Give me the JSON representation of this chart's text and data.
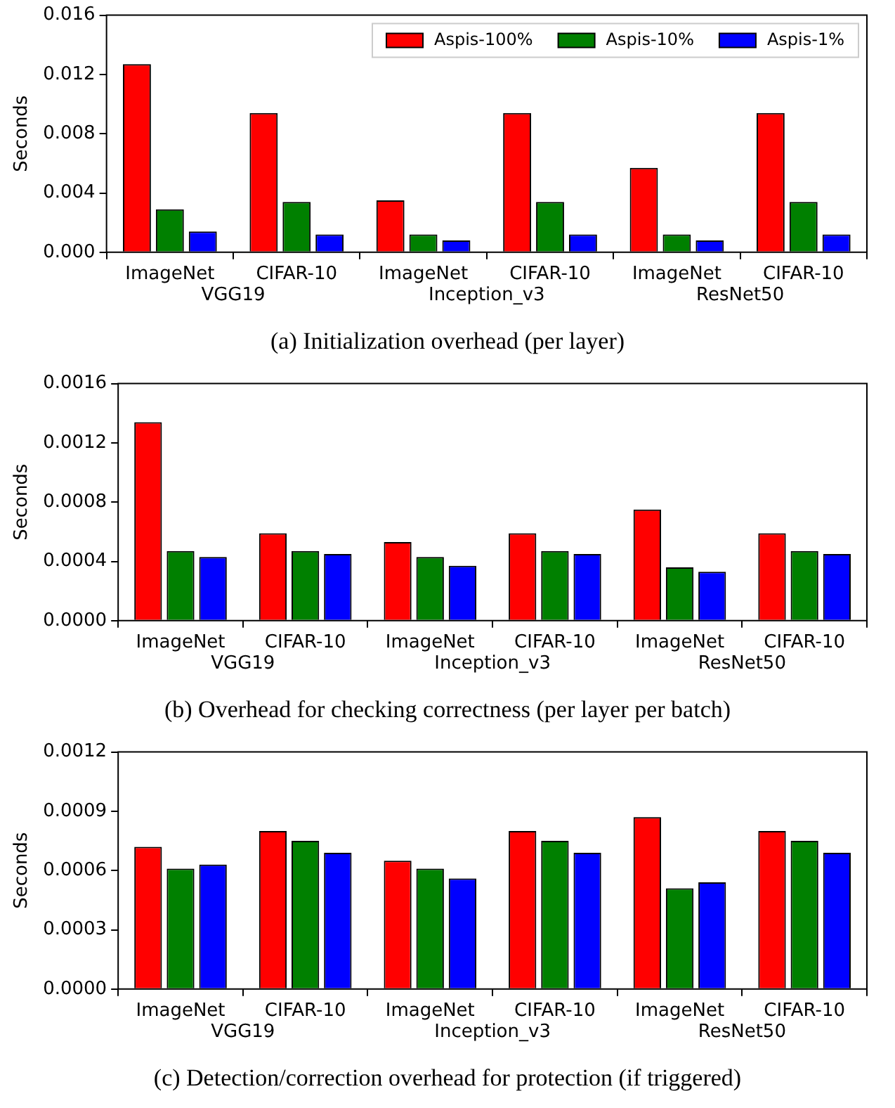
{
  "chart_data": [
    {
      "type": "bar",
      "title": "(a) Initialization overhead (per layer)",
      "ylabel": "Seconds",
      "categories": [
        "ImageNet",
        "CIFAR-10",
        "ImageNet",
        "CIFAR-10",
        "ImageNet",
        "CIFAR-10"
      ],
      "annotations": [
        "VGG19",
        "Inception_v3",
        "ResNet50"
      ],
      "ylim": [
        0,
        0.016
      ],
      "yticks": [
        {
          "value": 0,
          "label": "0.000"
        },
        {
          "value": 0.004,
          "label": "0.004"
        },
        {
          "value": 0.008,
          "label": "0.008"
        },
        {
          "value": 0.012,
          "label": "0.012"
        },
        {
          "value": 0.016,
          "label": "0.016"
        }
      ],
      "legend": "top right",
      "grid": false,
      "series": [
        {
          "name": "Aspis-100%",
          "color": "#ff0000",
          "values": [
            0.0127,
            0.0094,
            0.0035,
            0.0094,
            0.0057,
            0.0094
          ]
        },
        {
          "name": "Aspis-10%",
          "color": "#008000",
          "values": [
            0.0029,
            0.0034,
            0.0012,
            0.0034,
            0.0012,
            0.0034
          ]
        },
        {
          "name": "Aspis-1%",
          "color": "#0000ff",
          "values": [
            0.0014,
            0.0012,
            0.0008,
            0.0012,
            0.0008,
            0.0012
          ]
        }
      ]
    },
    {
      "type": "bar",
      "title": "(b) Overhead for checking correctness (per layer per batch)",
      "ylabel": "Seconds",
      "categories": [
        "ImageNet",
        "CIFAR-10",
        "ImageNet",
        "CIFAR-10",
        "ImageNet",
        "CIFAR-10"
      ],
      "annotations": [
        "VGG19",
        "Inception_v3",
        "ResNet50"
      ],
      "ylim": [
        0,
        0.0016
      ],
      "yticks": [
        {
          "value": 0,
          "label": "0.0000"
        },
        {
          "value": 0.0004,
          "label": "0.0004"
        },
        {
          "value": 0.0008,
          "label": "0.0008"
        },
        {
          "value": 0.0012,
          "label": "0.0012"
        },
        {
          "value": 0.0016,
          "label": "0.0016"
        }
      ],
      "legend": false,
      "grid": false,
      "series": [
        {
          "color": "#ff0000",
          "values": [
            0.00134,
            0.00059,
            0.00053,
            0.00059,
            0.00075,
            0.00059
          ]
        },
        {
          "color": "#008000",
          "values": [
            0.00047,
            0.00047,
            0.00043,
            0.00047,
            0.00036,
            0.00047
          ]
        },
        {
          "color": "#0000ff",
          "values": [
            0.00043,
            0.00045,
            0.00037,
            0.00045,
            0.00033,
            0.00045
          ]
        }
      ]
    },
    {
      "type": "bar",
      "title": "(c) Detection/correction overhead for protection (if triggered)",
      "ylabel": "Seconds",
      "categories": [
        "ImageNet",
        "CIFAR-10",
        "ImageNet",
        "CIFAR-10",
        "ImageNet",
        "CIFAR-10"
      ],
      "annotations": [
        "VGG19",
        "Inception_v3",
        "ResNet50"
      ],
      "ylim": [
        0,
        0.0012
      ],
      "yticks": [
        {
          "value": 0,
          "label": "0.0000"
        },
        {
          "value": 0.0003,
          "label": "0.0003"
        },
        {
          "value": 0.0006,
          "label": "0.0006"
        },
        {
          "value": 0.0009,
          "label": "0.0009"
        },
        {
          "value": 0.0012,
          "label": "0.0012"
        }
      ],
      "legend": false,
      "grid": false,
      "series": [
        {
          "color": "#ff0000",
          "values": [
            0.00072,
            0.0008,
            0.00065,
            0.0008,
            0.00087,
            0.0008
          ]
        },
        {
          "color": "#008000",
          "values": [
            0.00061,
            0.00075,
            0.00061,
            0.00075,
            0.00051,
            0.00075
          ]
        },
        {
          "color": "#0000ff",
          "values": [
            0.00063,
            0.00069,
            0.00056,
            0.00069,
            0.00054,
            0.00069
          ]
        }
      ]
    }
  ]
}
